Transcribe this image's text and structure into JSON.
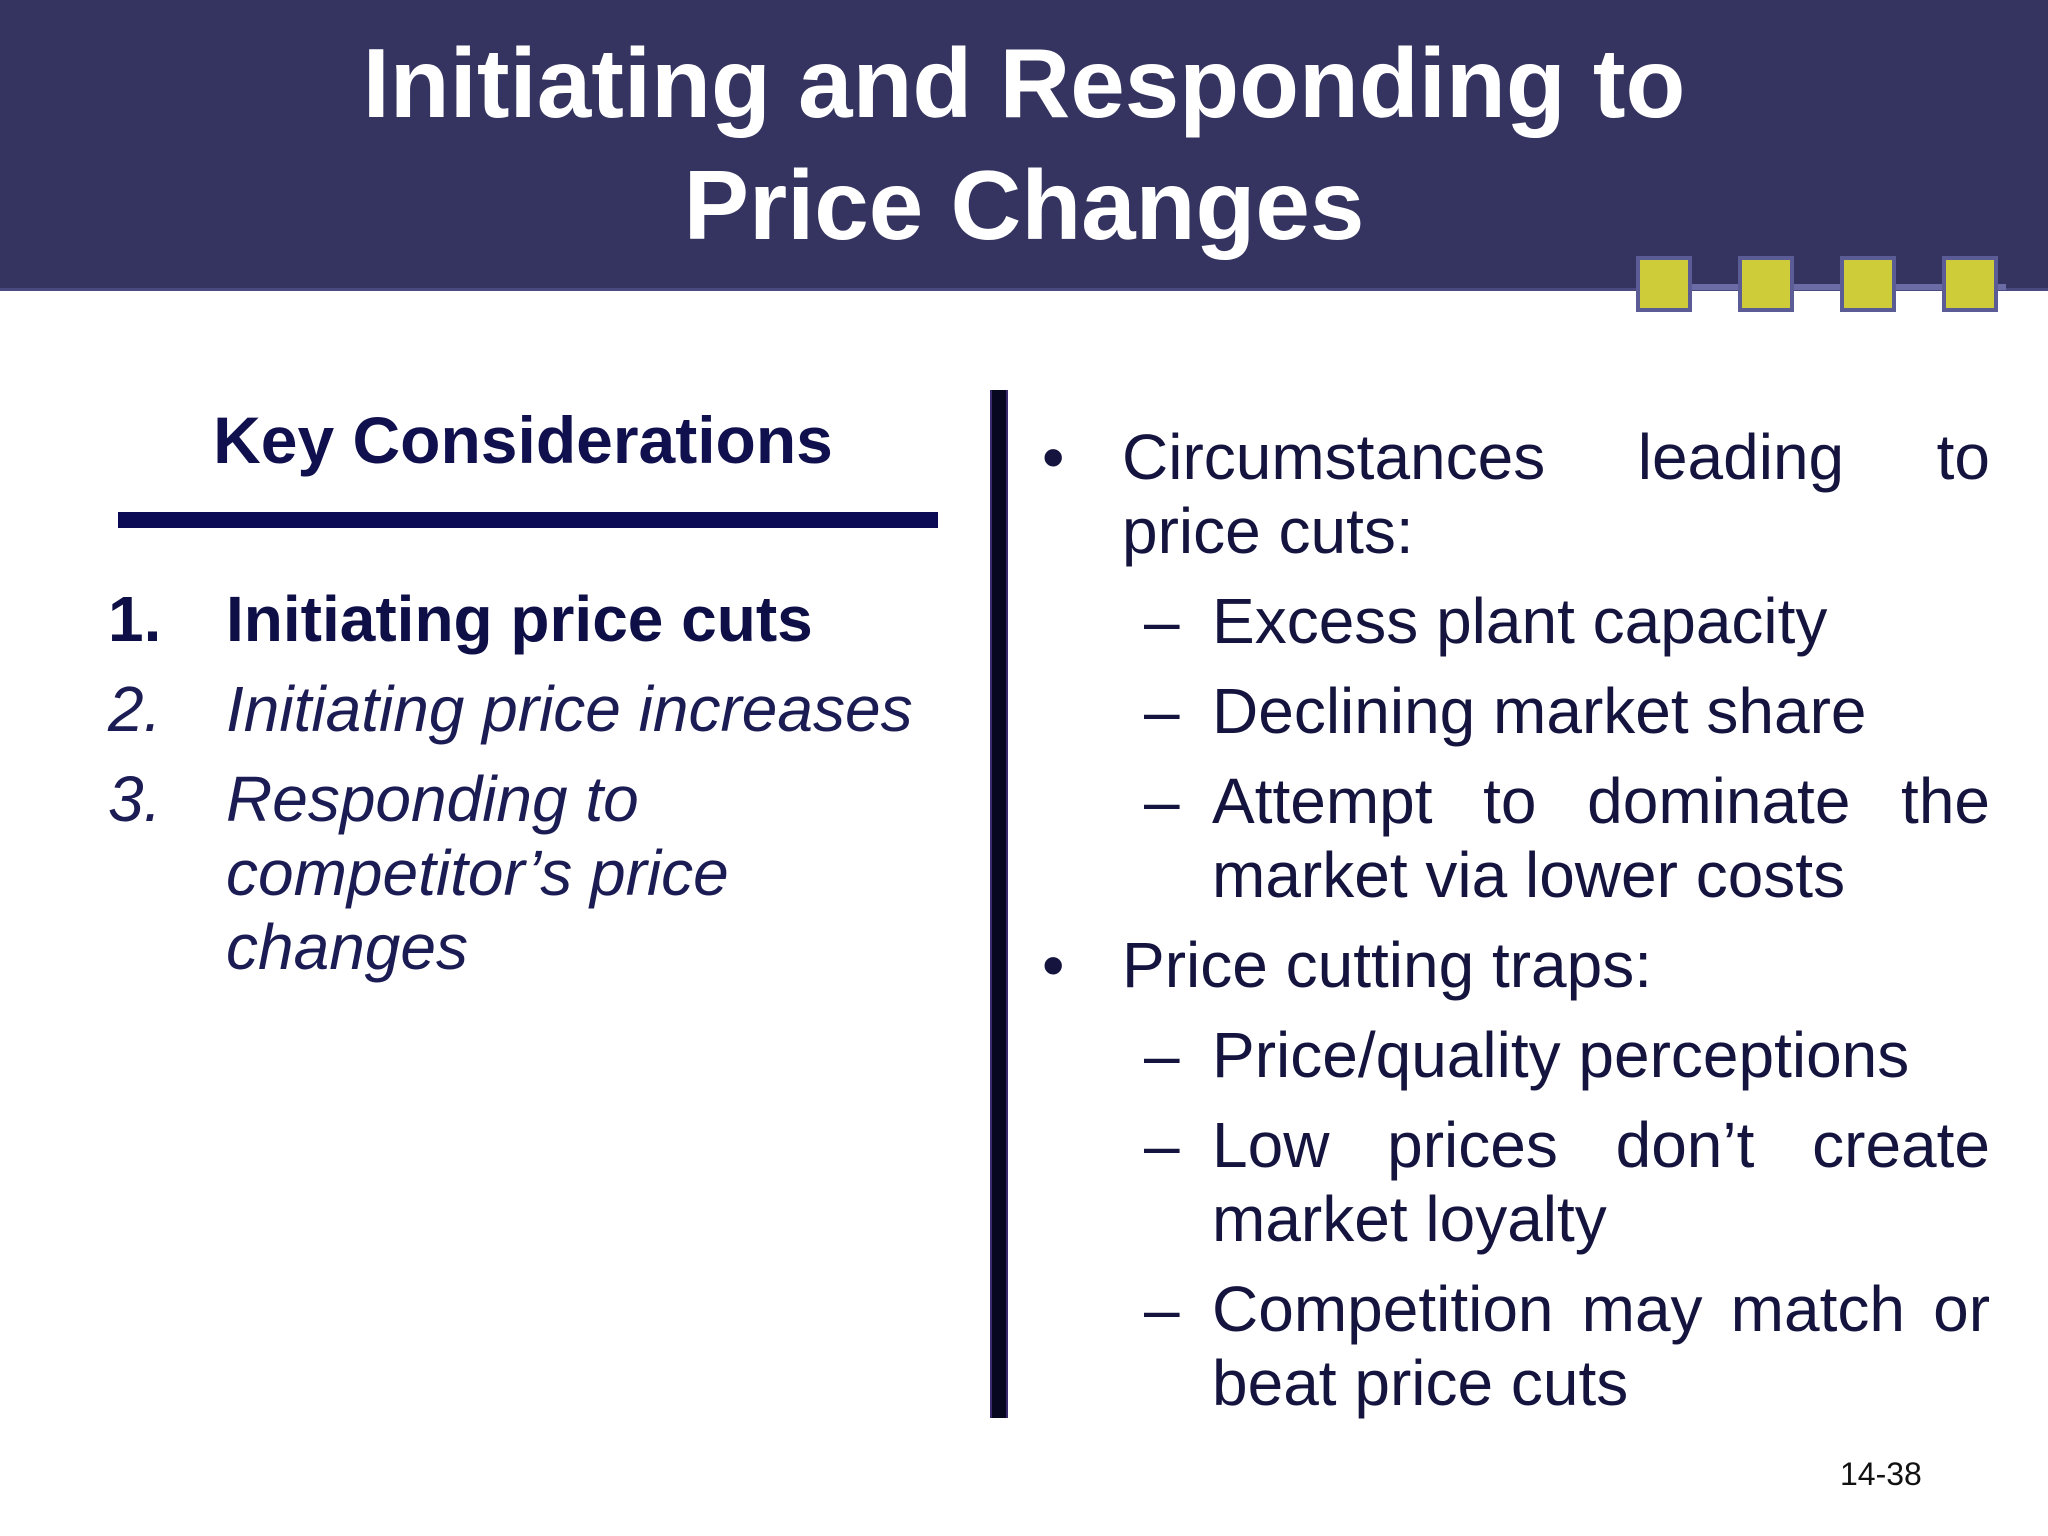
{
  "title": {
    "line1": "Initiating and Responding to",
    "line2": "Price Changes"
  },
  "left": {
    "heading": "Key Considerations",
    "items": [
      {
        "num": "1.",
        "text": "Initiating price cuts"
      },
      {
        "num": "2.",
        "text": "Initiating price increases"
      },
      {
        "num": "3.",
        "text": "Responding to competitor’s price changes"
      }
    ]
  },
  "right": {
    "bullet_mark": "•",
    "dash_mark": "–",
    "bullets": [
      {
        "text": "Circumstances leading to price cuts:",
        "subs": [
          "Excess plant capacity",
          "Declining market share",
          "Attempt to dominate the market via lower costs"
        ]
      },
      {
        "text": "Price cutting traps:",
        "subs": [
          "Price/quality perceptions",
          "Low prices don’t create market loyalty",
          "Competition may match or beat price cuts"
        ]
      }
    ]
  },
  "page_number": "14-38",
  "colors": {
    "title_band": "#353461",
    "accent_square": "#cfcc3a",
    "text_navy": "#10104e"
  }
}
